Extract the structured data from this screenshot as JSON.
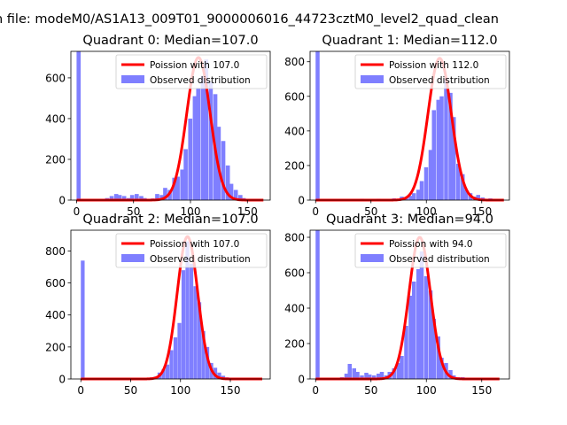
{
  "figure": {
    "suptitle": "n file: modeM0/AS1A13_009T01_9000006016_44723cztM0_level2_quad_clean"
  },
  "colors": {
    "fit_line": "#ff0000",
    "histogram": "#7f7fff",
    "axes": "#000000",
    "background": "#ffffff"
  },
  "chart_data": [
    {
      "type": "bar",
      "title": "Quadrant 0: Median=107.0",
      "xlabel": "",
      "ylabel": "",
      "xlim": [
        -5,
        170
      ],
      "ylim": [
        0,
        730
      ],
      "xticks": [
        0,
        50,
        100,
        150
      ],
      "yticks": [
        0,
        200,
        400,
        600
      ],
      "grid": false,
      "legend_position": "upper-right",
      "bin_width": 3.6,
      "series": [
        {
          "name": "Observed distribution",
          "kind": "histogram",
          "bins": [
            [
              0,
              730
            ],
            [
              25,
              10
            ],
            [
              29,
              20
            ],
            [
              33,
              30
            ],
            [
              36,
              25
            ],
            [
              40,
              20
            ],
            [
              44,
              10
            ],
            [
              47,
              25
            ],
            [
              51,
              30
            ],
            [
              55,
              20
            ],
            [
              58,
              10
            ],
            [
              62,
              5
            ],
            [
              65,
              8
            ],
            [
              69,
              30
            ],
            [
              73,
              25
            ],
            [
              76,
              60
            ],
            [
              80,
              50
            ],
            [
              84,
              110
            ],
            [
              87,
              115
            ],
            [
              91,
              150
            ],
            [
              94,
              250
            ],
            [
              98,
              400
            ],
            [
              102,
              510
            ],
            [
              105,
              550
            ],
            [
              109,
              610
            ],
            [
              112,
              690
            ],
            [
              116,
              580
            ],
            [
              120,
              520
            ],
            [
              123,
              360
            ],
            [
              127,
              290
            ],
            [
              131,
              170
            ],
            [
              134,
              80
            ],
            [
              138,
              50
            ],
            [
              142,
              25
            ],
            [
              145,
              10
            ],
            [
              149,
              5
            ]
          ]
        },
        {
          "name": "Poission with 107.0",
          "kind": "fit",
          "mean": 107.0,
          "peak": 700,
          "sigma": 10.3,
          "x_range": [
            0,
            164
          ]
        }
      ]
    },
    {
      "type": "bar",
      "title": "Quadrant 1: Median=112.0",
      "xlabel": "",
      "ylabel": "",
      "xlim": [
        -5,
        175
      ],
      "ylim": [
        0,
        860
      ],
      "xticks": [
        0,
        50,
        100,
        150
      ],
      "yticks": [
        0,
        200,
        400,
        600,
        800
      ],
      "grid": false,
      "legend_position": "upper-right",
      "bin_width": 3.6,
      "series": [
        {
          "name": "Observed distribution",
          "kind": "histogram",
          "bins": [
            [
              0,
              860
            ],
            [
              33,
              5
            ],
            [
              40,
              8
            ],
            [
              47,
              5
            ],
            [
              55,
              8
            ],
            [
              62,
              5
            ],
            [
              69,
              10
            ],
            [
              73,
              8
            ],
            [
              76,
              20
            ],
            [
              80,
              15
            ],
            [
              84,
              25
            ],
            [
              87,
              40
            ],
            [
              91,
              60
            ],
            [
              94,
              110
            ],
            [
              98,
              190
            ],
            [
              102,
              290
            ],
            [
              105,
              520
            ],
            [
              109,
              580
            ],
            [
              112,
              600
            ],
            [
              116,
              700
            ],
            [
              120,
              620
            ],
            [
              123,
              480
            ],
            [
              127,
              210
            ],
            [
              131,
              150
            ],
            [
              134,
              60
            ],
            [
              138,
              40
            ],
            [
              142,
              20
            ],
            [
              145,
              30
            ],
            [
              149,
              15
            ],
            [
              156,
              10
            ]
          ]
        },
        {
          "name": "Poission with 112.0",
          "kind": "fit",
          "mean": 112.0,
          "peak": 820,
          "sigma": 10.6,
          "x_range": [
            0,
            170
          ]
        }
      ]
    },
    {
      "type": "bar",
      "title": "Quadrant 2: Median=107.0",
      "xlabel": "",
      "ylabel": "",
      "xlim": [
        -10,
        190
      ],
      "ylim": [
        0,
        930
      ],
      "xticks": [
        0,
        50,
        100,
        150
      ],
      "yticks": [
        0,
        200,
        400,
        600,
        800
      ],
      "grid": false,
      "legend_position": "upper-right",
      "bin_width": 3.8,
      "series": [
        {
          "name": "Observed distribution",
          "kind": "histogram",
          "bins": [
            [
              0,
              740
            ],
            [
              65,
              5
            ],
            [
              69,
              10
            ],
            [
              73,
              15
            ],
            [
              77,
              40
            ],
            [
              81,
              60
            ],
            [
              85,
              90
            ],
            [
              89,
              180
            ],
            [
              93,
              260
            ],
            [
              97,
              350
            ],
            [
              101,
              680
            ],
            [
              105,
              860
            ],
            [
              109,
              720
            ],
            [
              113,
              580
            ],
            [
              117,
              480
            ],
            [
              121,
              300
            ],
            [
              125,
              200
            ],
            [
              129,
              100
            ],
            [
              133,
              70
            ],
            [
              137,
              40
            ],
            [
              141,
              20
            ],
            [
              145,
              10
            ],
            [
              149,
              5
            ]
          ]
        },
        {
          "name": "Poission with 107.0",
          "kind": "fit",
          "mean": 107.0,
          "peak": 890,
          "sigma": 10.3,
          "x_range": [
            0,
            182
          ]
        }
      ]
    },
    {
      "type": "bar",
      "title": "Quadrant 3: Median=94.0",
      "xlabel": "",
      "ylabel": "",
      "xlim": [
        -5,
        175
      ],
      "ylim": [
        0,
        840
      ],
      "xticks": [
        0,
        50,
        100,
        150
      ],
      "yticks": [
        0,
        200,
        400,
        600,
        800
      ],
      "grid": false,
      "legend_position": "upper-right",
      "bin_width": 3.6,
      "series": [
        {
          "name": "Observed distribution",
          "kind": "histogram",
          "bins": [
            [
              0,
              840
            ],
            [
              22,
              10
            ],
            [
              26,
              30
            ],
            [
              29,
              85
            ],
            [
              33,
              60
            ],
            [
              36,
              40
            ],
            [
              40,
              20
            ],
            [
              44,
              35
            ],
            [
              47,
              25
            ],
            [
              51,
              20
            ],
            [
              55,
              30
            ],
            [
              58,
              40
            ],
            [
              62,
              20
            ],
            [
              65,
              40
            ],
            [
              69,
              60
            ],
            [
              73,
              90
            ],
            [
              76,
              130
            ],
            [
              80,
              300
            ],
            [
              84,
              470
            ],
            [
              87,
              550
            ],
            [
              91,
              620
            ],
            [
              94,
              720
            ],
            [
              98,
              580
            ],
            [
              102,
              500
            ],
            [
              105,
              340
            ],
            [
              109,
              240
            ],
            [
              112,
              120
            ],
            [
              116,
              90
            ],
            [
              120,
              50
            ],
            [
              123,
              20
            ],
            [
              127,
              10
            ],
            [
              131,
              10
            ],
            [
              134,
              5
            ],
            [
              138,
              5
            ]
          ]
        },
        {
          "name": "Poission with 94.0",
          "kind": "fit",
          "mean": 94.0,
          "peak": 800,
          "sigma": 9.7,
          "x_range": [
            0,
            166
          ]
        }
      ]
    }
  ]
}
